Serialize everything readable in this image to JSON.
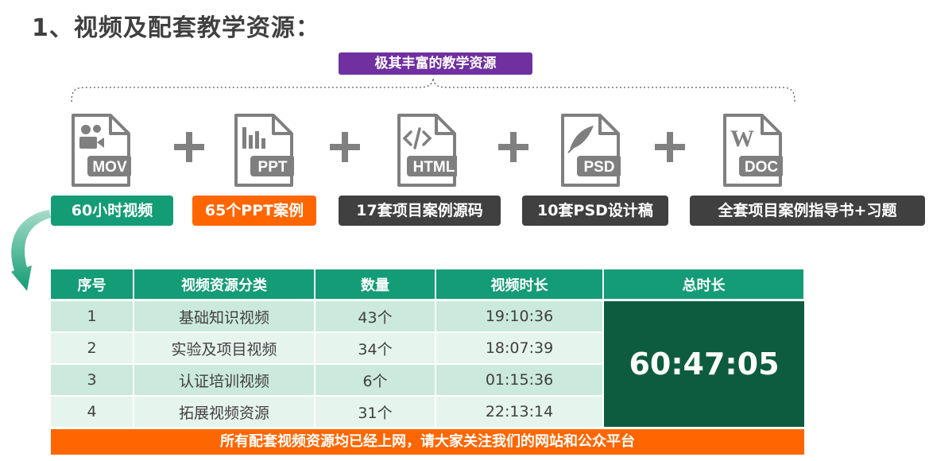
{
  "title": "1、视频及配套教学资源：",
  "top_label": "极其丰富的教学资源",
  "resources": [
    {
      "ext": "MOV",
      "icon": "video-file-icon",
      "label": "60小时视频",
      "color": "#139c75"
    },
    {
      "ext": "PPT",
      "icon": "ppt-file-icon",
      "label": "65个PPT案例",
      "color": "#ff6600"
    },
    {
      "ext": "HTML",
      "icon": "html-file-icon",
      "label": "17套项目案例源码",
      "color": "#404040"
    },
    {
      "ext": "PSD",
      "icon": "psd-file-icon",
      "label": "10套PSD设计稿",
      "color": "#404040"
    },
    {
      "ext": "DOC",
      "icon": "doc-file-icon",
      "label": "全套项目案例指导书+习题",
      "color": "#404040"
    }
  ],
  "table": {
    "headers": [
      "序号",
      "视频资源分类",
      "数量",
      "视频时长",
      "总时长"
    ],
    "rows": [
      [
        "1",
        "基础知识视频",
        "43个",
        "19:10:36"
      ],
      [
        "2",
        "实验及项目视频",
        "34个",
        "18:07:39"
      ],
      [
        "3",
        "认证培训视频",
        "6个",
        "01:15:36"
      ],
      [
        "4",
        "拓展视频资源",
        "31个",
        "22:13:14"
      ]
    ],
    "total": "60:47:05"
  },
  "footer": "所有配套视频资源均已经上网，请大家关注我们的网站和公众平台",
  "colors": {
    "accent_green": "#139c75",
    "dark_green": "#0d5c3f",
    "orange": "#ff6600",
    "purple": "#7030a0",
    "gray": "#404040"
  }
}
